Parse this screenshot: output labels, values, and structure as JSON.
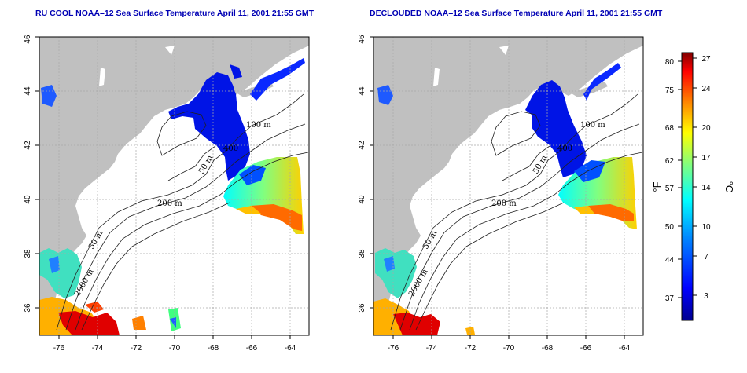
{
  "panels": [
    {
      "title": "RU COOL NOAA–12 Sea Surface Temperature April 11, 2001 21:55 GMT",
      "contour_labels": [
        "100 m",
        "50 m",
        "200 m",
        "2000 m"
      ],
      "contour_labels_partial": [
        "400",
        "50 m"
      ]
    },
    {
      "title": "DECLOUDED NOAA–12 Sea Surface Temperature April 11, 2001 21:55 GMT",
      "contour_labels": [
        "100 m",
        "50 m",
        "200 m",
        "2000 m"
      ],
      "contour_labels_partial": [
        "400",
        "50 m"
      ]
    }
  ],
  "axes": {
    "lon_ticks": [
      "-76",
      "-74",
      "-72",
      "-70",
      "-68",
      "-66",
      "-64"
    ],
    "lat_ticks": [
      "36",
      "38",
      "40",
      "42",
      "44",
      "46"
    ],
    "lon_range": [
      -77,
      -63
    ],
    "lat_range": [
      35,
      46
    ],
    "grid": true
  },
  "colorbar": {
    "fahrenheit_label": "°F",
    "celsius_label": "°C",
    "fahrenheit_ticks": [
      "80",
      "75",
      "68",
      "62",
      "57",
      "50",
      "44",
      "37"
    ],
    "celsius_ticks": [
      "27",
      "24",
      "20",
      "17",
      "14",
      "10",
      "7",
      "3"
    ],
    "colors": [
      "#00008f",
      "#0000ff",
      "#0080ff",
      "#00ffff",
      "#80ff80",
      "#ffff00",
      "#ff8000",
      "#ff0000",
      "#800000"
    ]
  },
  "colors": {
    "land": "#c0c0c0",
    "title": "#0000b4"
  }
}
